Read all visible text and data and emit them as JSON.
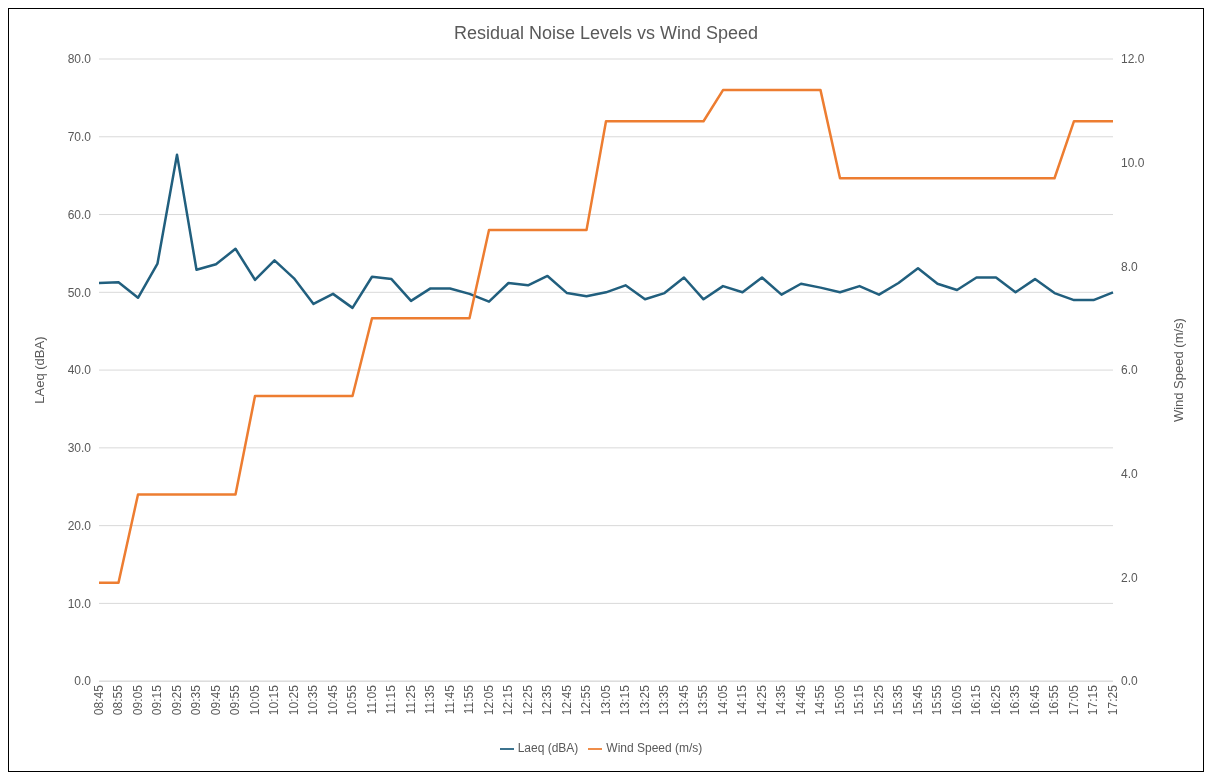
{
  "chart_data": {
    "type": "line",
    "title": "Residual Noise Levels vs Wind Speed",
    "ylabel": "LAeq (dBA)",
    "y2label": "Wind Speed (m/s)",
    "categories": [
      "08:45",
      "08:55",
      "09:05",
      "09:15",
      "09:25",
      "09:35",
      "09:45",
      "09:55",
      "10:05",
      "10:15",
      "10:25",
      "10:35",
      "10:45",
      "10:55",
      "11:05",
      "11:15",
      "11:25",
      "11:35",
      "11:45",
      "11:55",
      "12:05",
      "12:15",
      "12:25",
      "12:35",
      "12:45",
      "12:55",
      "13:05",
      "13:15",
      "13:25",
      "13:35",
      "13:45",
      "13:55",
      "14:05",
      "14:15",
      "14:25",
      "14:35",
      "14:45",
      "14:55",
      "15:05",
      "15:15",
      "15:25",
      "15:35",
      "15:45",
      "15:55",
      "16:05",
      "16:15",
      "16:25",
      "16:35",
      "16:45",
      "16:55",
      "17:05",
      "17:15",
      "17:25"
    ],
    "series": [
      {
        "name": "Laeq (dBA)",
        "color": "#215f7e",
        "values": [
          51.2,
          51.3,
          49.3,
          53.7,
          67.7,
          52.9,
          53.6,
          55.6,
          51.6,
          54.1,
          51.8,
          48.5,
          49.8,
          48.0,
          52.0,
          51.7,
          48.9,
          50.5,
          50.5,
          49.8,
          48.8,
          51.2,
          50.9,
          52.1,
          49.9,
          49.5,
          50.0,
          50.9,
          49.1,
          49.9,
          51.9,
          49.1,
          50.8,
          50.0,
          51.9,
          49.7,
          51.1,
          50.6,
          50.0,
          50.8,
          49.7,
          51.2,
          53.1,
          51.1,
          50.3,
          51.9,
          51.9,
          50.0,
          51.7,
          49.9,
          49.0,
          49.0,
          50.0
        ]
      },
      {
        "name": "Wind Speed (m/s)",
        "color": "#ed7d31",
        "axis": "y2",
        "values": [
          1.9,
          1.9,
          3.6,
          3.6,
          3.6,
          3.6,
          3.6,
          3.6,
          5.5,
          5.5,
          5.5,
          5.5,
          5.5,
          5.5,
          7.0,
          7.0,
          7.0,
          7.0,
          7.0,
          7.0,
          8.7,
          8.7,
          8.7,
          8.7,
          8.7,
          8.7,
          10.8,
          10.8,
          10.8,
          10.8,
          10.8,
          10.8,
          11.4,
          11.4,
          11.4,
          11.4,
          11.4,
          11.4,
          9.7,
          9.7,
          9.7,
          9.7,
          9.7,
          9.7,
          9.7,
          9.7,
          9.7,
          9.7,
          9.7,
          9.7,
          10.8,
          10.8,
          10.8
        ]
      }
    ],
    "ylim": [
      0,
      80
    ],
    "yticks": [
      {
        "value": 0,
        "label": "0.0"
      },
      {
        "value": 10,
        "label": "10.0"
      },
      {
        "value": 20,
        "label": "20.0"
      },
      {
        "value": 30,
        "label": "30.0"
      },
      {
        "value": 40,
        "label": "40.0"
      },
      {
        "value": 50,
        "label": "50.0"
      },
      {
        "value": 60,
        "label": "60.0"
      },
      {
        "value": 70,
        "label": "70.0"
      },
      {
        "value": 80,
        "label": "80.0"
      }
    ],
    "y2lim": [
      0,
      12
    ],
    "y2ticks": [
      {
        "value": 0,
        "label": "0.0"
      },
      {
        "value": 2,
        "label": "2.0"
      },
      {
        "value": 4,
        "label": "4.0"
      },
      {
        "value": 6,
        "label": "6.0"
      },
      {
        "value": 8,
        "label": "8.0"
      },
      {
        "value": 10,
        "label": "10.0"
      },
      {
        "value": 12,
        "label": "12.0"
      }
    ],
    "grid": "y",
    "legend": "bottom",
    "marker": "none",
    "line_style": "solid"
  }
}
